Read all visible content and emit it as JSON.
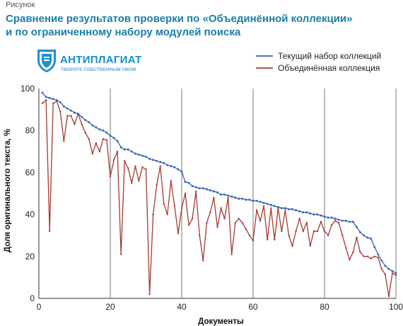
{
  "figure": {
    "caption_label": "Рисунок",
    "title_line1": "Сравнение результатов проверки по «Объединённой коллекции»",
    "title_line2": "и по ограниченному набору модулей поиска"
  },
  "logo": {
    "name": "АНТИПЛАГИАТ",
    "tagline": "ТВОРИТЕ СОБСТВЕННЫМ УМОМ"
  },
  "colors": {
    "title": "#1b7fa8",
    "series_blue": "#3163b4",
    "series_red": "#a53a32",
    "grid": "#7a7a7a"
  },
  "chart_data": {
    "type": "line",
    "xlabel": "Документы",
    "ylabel": "Доля оригинального текста, %",
    "xlim": [
      0,
      100
    ],
    "ylim": [
      0,
      100
    ],
    "xticks": [
      0,
      20,
      40,
      60,
      80,
      100
    ],
    "yticks": [
      0,
      20,
      40,
      60,
      80,
      100
    ],
    "grid": "vertical",
    "legend_position": "top-right",
    "x": [
      1,
      2,
      3,
      4,
      5,
      6,
      7,
      8,
      9,
      10,
      11,
      12,
      13,
      14,
      15,
      16,
      17,
      18,
      19,
      20,
      21,
      22,
      23,
      24,
      25,
      26,
      27,
      28,
      29,
      30,
      31,
      32,
      33,
      34,
      35,
      36,
      37,
      38,
      39,
      40,
      41,
      42,
      43,
      44,
      45,
      46,
      47,
      48,
      49,
      50,
      51,
      52,
      53,
      54,
      55,
      56,
      57,
      58,
      59,
      60,
      61,
      62,
      63,
      64,
      65,
      66,
      67,
      68,
      69,
      70,
      71,
      72,
      73,
      74,
      75,
      76,
      77,
      78,
      79,
      80,
      81,
      82,
      83,
      84,
      85,
      86,
      87,
      88,
      89,
      90,
      91,
      92,
      93,
      94,
      95,
      96,
      97,
      98,
      99,
      100
    ],
    "series": [
      {
        "name": "Текущий набор коллекций",
        "color": "#3163b4",
        "marker": true,
        "values": [
          98,
          96,
          95.5,
          95,
          94.5,
          93.5,
          91.5,
          90.5,
          89.5,
          88.5,
          88,
          86.5,
          85,
          84,
          82.5,
          81.5,
          80.5,
          80,
          79,
          77.5,
          76.5,
          75,
          72,
          71,
          71,
          70,
          69,
          68.5,
          68,
          67.5,
          66.5,
          66,
          65.5,
          65,
          64.5,
          63.5,
          63,
          62.5,
          61.5,
          60.5,
          55.5,
          55,
          53.5,
          53,
          52.5,
          52.5,
          52,
          51.5,
          51,
          50.5,
          49.5,
          49.5,
          49,
          48.5,
          48,
          47.5,
          47.5,
          47,
          47,
          46.5,
          46.5,
          46,
          45.5,
          45,
          44.5,
          44,
          43.5,
          43,
          43,
          42.5,
          42.5,
          42,
          41.5,
          41,
          41,
          40.5,
          40,
          40,
          39.5,
          39,
          38.5,
          38.5,
          38,
          37.5,
          37,
          37,
          36.5,
          36.5,
          34,
          31.5,
          30,
          29,
          28.5,
          24.5,
          21,
          18,
          15.5,
          14,
          13,
          12
        ]
      },
      {
        "name": "Объединённая коллекция",
        "color": "#a53a32",
        "marker": false,
        "values": [
          93,
          94.5,
          32,
          93,
          94,
          89,
          75,
          87,
          87,
          83,
          88,
          83,
          79,
          76,
          69,
          74,
          70,
          76,
          75.5,
          58,
          66,
          70,
          21,
          65.5,
          62,
          55,
          63,
          56,
          62.5,
          61.5,
          2,
          40,
          54,
          63,
          45,
          40,
          56,
          44,
          31,
          43,
          50,
          35,
          38,
          51,
          30,
          18,
          36,
          41,
          48,
          34,
          43,
          38,
          48,
          21,
          36,
          38,
          36,
          33,
          30,
          27.5,
          42,
          37,
          44,
          28,
          43,
          28,
          43,
          32,
          42,
          30,
          25,
          32,
          38,
          32,
          36,
          25,
          32,
          32,
          36.5,
          32,
          30,
          35,
          37,
          36,
          30,
          24,
          18.5,
          22,
          29,
          22,
          20,
          20,
          19,
          20,
          19.5,
          14,
          11.5,
          1,
          12,
          11
        ]
      }
    ]
  }
}
